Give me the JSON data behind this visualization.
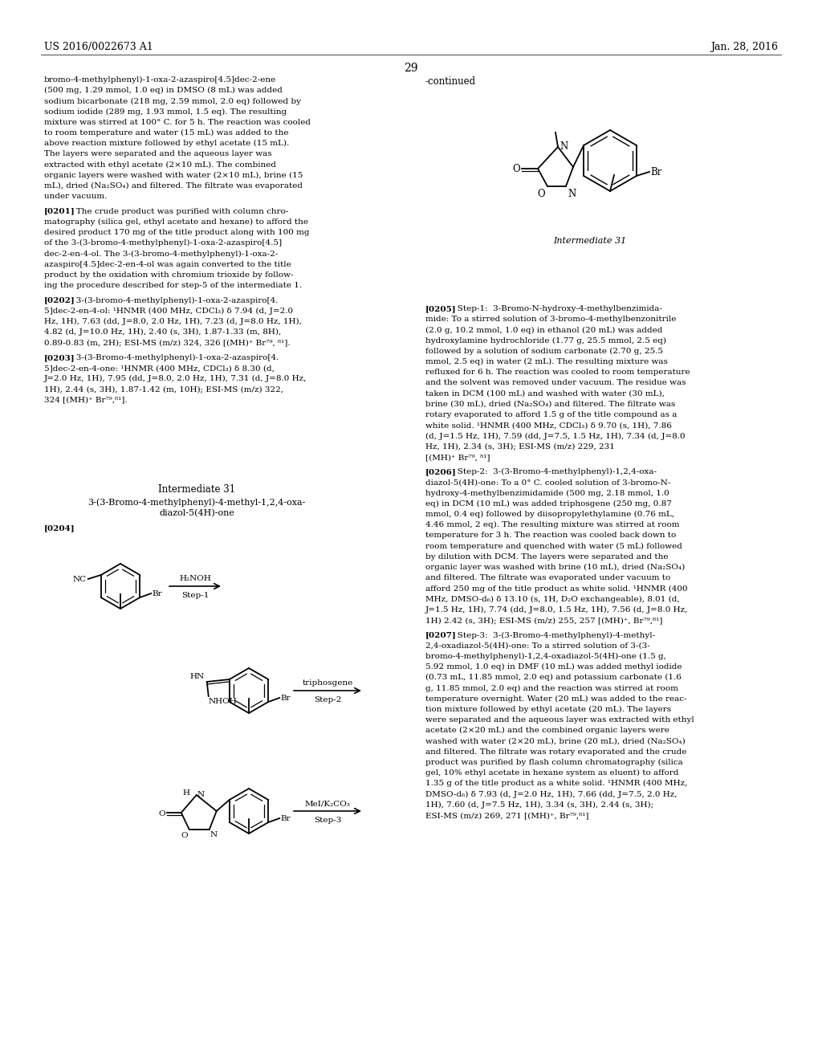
{
  "page_number": "29",
  "patent_number": "US 2016/0022673 A1",
  "patent_date": "Jan. 28, 2016",
  "background_color": "#ffffff",
  "font_size_body": 7.5,
  "font_size_header": 8.5,
  "left_col_lines": [
    "bromo-4-methylphenyl)-1-oxa-2-azaspiro[4.5]dec-2-ene",
    "(500 mg, 1.29 mmol, 1.0 eq) in DMSO (8 mL) was added",
    "sodium bicarbonate (218 mg, 2.59 mmol, 2.0 eq) followed by",
    "sodium iodide (289 mg, 1.93 mmol, 1.5 eq). The resulting",
    "mixture was stirred at 100° C. for 5 h. The reaction was cooled",
    "to room temperature and water (15 mL) was added to the",
    "above reaction mixture followed by ethyl acetate (15 mL).",
    "The layers were separated and the aqueous layer was",
    "extracted with ethyl acetate (2×10 mL). The combined",
    "organic layers were washed with water (2×10 mL), brine (15",
    "mL), dried (Na₂SO₄) and filtered. The filtrate was evaporated",
    "under vacuum.",
    "BLANK",
    "[0201]   The crude product was purified with column chro-",
    "matography (silica gel, ethyl acetate and hexane) to afford the",
    "desired product 170 mg of the title product along with 100 mg",
    "of the 3-(3-bromo-4-methylphenyl)-1-oxa-2-azaspiro[4.5]",
    "dec-2-en-4-ol. The 3-(3-bromo-4-methylphenyl)-1-oxa-2-",
    "azaspiro[4.5]dec-2-en-4-ol was again converted to the title",
    "product by the oxidation with chromium trioxide by follow-",
    "ing the procedure described for step-5 of the intermediate 1.",
    "BLANK",
    "[0202]   3-(3-bromo-4-methylphenyl)-1-oxa-2-azaspiro[4.",
    "5]dec-2-en-4-ol: ¹HNMR (400 MHz, CDCl₃) δ 7.94 (d, J=2.0",
    "Hz, 1H), 7.63 (dd, J=8.0, 2.0 Hz, 1H), 7.23 (d, J=8.0 Hz, 1H),",
    "4.82 (d, J=10.0 Hz, 1H), 2.40 (s, 3H), 1.87-1.33 (m, 8H),",
    "0.89-0.83 (m, 2H); ESI-MS (m/z) 324, 326 [(MH)⁺ Br⁷⁹, ⁸¹].",
    "BLANK",
    "[0203]   3-(3-Bromo-4-methylphenyl)-1-oxa-2-azaspiro[4.",
    "5]dec-2-en-4-one: ¹HNMR (400 MHz, CDCl₃) δ 8.30 (d,",
    "J=2.0 Hz, 1H), 7.95 (dd, J=8.0, 2.0 Hz, 1H), 7.31 (d, J=8.0 Hz,",
    "1H), 2.44 (s, 3H), 1.87-1.42 (m, 10H); ESI-MS (m/z) 322,",
    "324 [(MH)⁺ Br⁷⁹,⁸¹]."
  ],
  "right_col_lines": [
    "[0205]   Step-1:  3-Bromo-N-hydroxy-4-methylbenzimida-",
    "mide: To a stirred solution of 3-bromo-4-methylbenzonitrile",
    "(2.0 g, 10.2 mmol, 1.0 eq) in ethanol (20 mL) was added",
    "hydroxylamine hydrochloride (1.77 g, 25.5 mmol, 2.5 eq)",
    "followed by a solution of sodium carbonate (2.70 g, 25.5",
    "mmol, 2.5 eq) in water (2 mL). The resulting mixture was",
    "refluxed for 6 h. The reaction was cooled to room temperature",
    "and the solvent was removed under vacuum. The residue was",
    "taken in DCM (100 mL) and washed with water (30 mL),",
    "brine (30 mL), dried (Na₂SO₄) and filtered. The filtrate was",
    "rotary evaporated to afford 1.5 g of the title compound as a",
    "white solid. ¹HNMR (400 MHz, CDCl₃) δ 9.70 (s, 1H), 7.86",
    "(d, J=1.5 Hz, 1H), 7.59 (dd, J=7.5, 1.5 Hz, 1H), 7.34 (d, J=8.0",
    "Hz, 1H), 2.34 (s, 3H); ESI-MS (m/z) 229, 231",
    "[(MH)⁺ Br⁷⁹, ⁸¹]",
    "BLANK",
    "[0206]   Step-2:  3-(3-Bromo-4-methylphenyl)-1,2,4-oxa-",
    "diazol-5(4H)-one: To a 0° C. cooled solution of 3-bromo-N-",
    "hydroxy-4-methylbenzimidamide (500 mg, 2.18 mmol, 1.0",
    "eq) in DCM (10 mL) was added triphosgene (250 mg, 0.87",
    "mmol, 0.4 eq) followed by diisopropylethylamine (0.76 mL,",
    "4.46 mmol, 2 eq). The resulting mixture was stirred at room",
    "temperature for 3 h. The reaction was cooled back down to",
    "room temperature and quenched with water (5 mL) followed",
    "by dilution with DCM. The layers were separated and the",
    "organic layer was washed with brine (10 mL), dried (Na₂SO₄)",
    "and filtered. The filtrate was evaporated under vacuum to",
    "afford 250 mg of the title product as white solid. ¹HNMR (400",
    "MHz, DMSO-d₆) δ 13.10 (s, 1H, D₂O exchangeable), 8.01 (d,",
    "J=1.5 Hz, 1H), 7.74 (dd, J=8.0, 1.5 Hz, 1H), 7.56 (d, J=8.0 Hz,",
    "1H) 2.42 (s, 3H); ESI-MS (m/z) 255, 257 [(MH)⁺, Br⁷⁹,⁸¹]",
    "BLANK",
    "[0207]   Step-3:  3-(3-Bromo-4-methylphenyl)-4-methyl-",
    "2,4-oxadiazol-5(4H)-one: To a stirred solution of 3-(3-",
    "bromo-4-methylphenyl)-1,2,4-oxadiazol-5(4H)-one (1.5 g,",
    "5.92 mmol, 1.0 eq) in DMF (10 mL) was added methyl iodide",
    "(0.73 mL, 11.85 mmol, 2.0 eq) and potassium carbonate (1.6",
    "g, 11.85 mmol, 2.0 eq) and the reaction was stirred at room",
    "temperature overnight. Water (20 mL) was added to the reac-",
    "tion mixture followed by ethyl acetate (20 mL). The layers",
    "were separated and the aqueous layer was extracted with ethyl",
    "acetate (2×20 mL) and the combined organic layers were",
    "washed with water (2×20 mL), brine (20 mL), dried (Na₂SO₄)",
    "and filtered. The filtrate was rotary evaporated and the crude",
    "product was purified by flash column chromatography (silica",
    "gel, 10% ethyl acetate in hexane system as eluent) to afford",
    "1.35 g of the title product as a white solid. ¹HNMR (400 MHz,",
    "DMSO-d₆) δ 7.93 (d, J=2.0 Hz, 1H), 7.66 (dd, J=7.5, 2.0 Hz,",
    "1H), 7.60 (d, J=7.5 Hz, 1H), 3.34 (s, 3H), 2.44 (s, 3H);",
    "ESI-MS (m/z) 269, 271 [(MH)⁺, Br⁷⁹,⁸¹]"
  ]
}
